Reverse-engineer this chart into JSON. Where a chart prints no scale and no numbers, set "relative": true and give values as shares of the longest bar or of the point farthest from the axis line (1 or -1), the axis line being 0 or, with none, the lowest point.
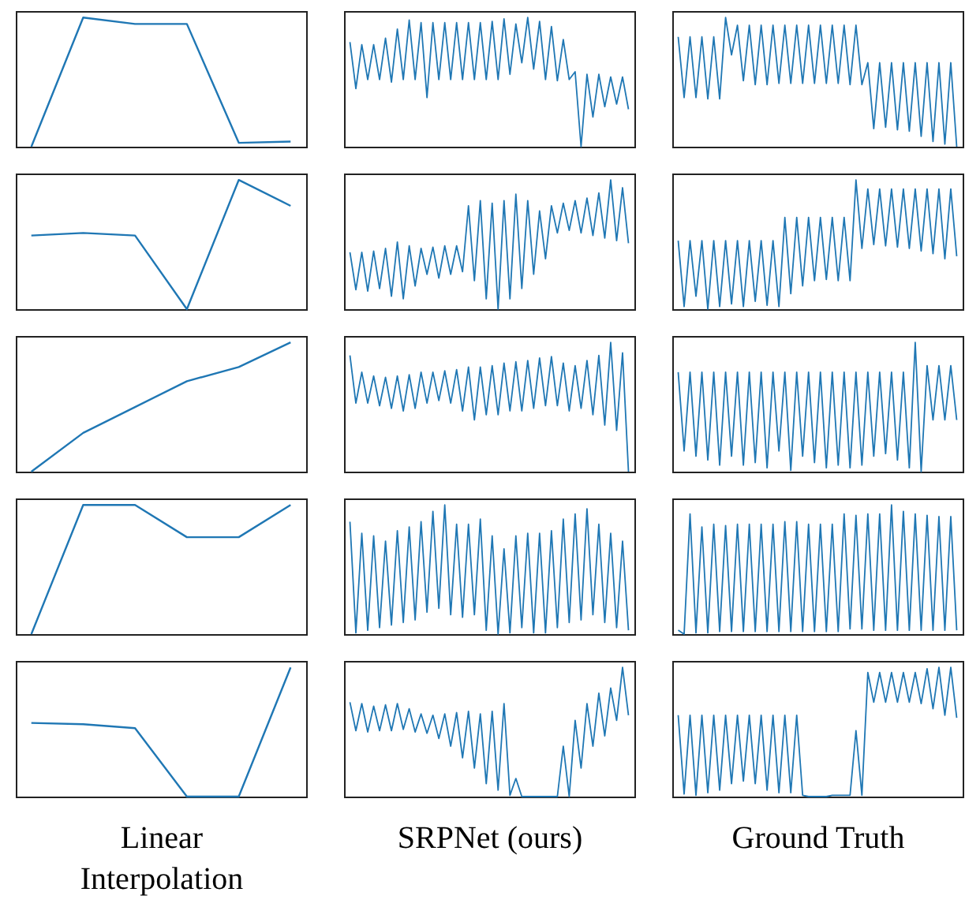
{
  "chart_data": [
    {
      "type": "line",
      "relative": true,
      "tick_labels": false,
      "categories": [
        null,
        null,
        null,
        null,
        null,
        null
      ],
      "series": [
        {
          "color": "#1f77b4",
          "values": [
            0,
            1,
            0.95,
            0.95,
            0.03,
            0.04
          ]
        }
      ]
    },
    {
      "type": "line",
      "relative": true,
      "tick_labels": false,
      "categories": [
        null,
        null,
        null,
        null,
        null,
        null,
        null,
        null,
        null,
        null,
        null,
        null,
        null,
        null,
        null,
        null,
        null,
        null,
        null,
        null,
        null,
        null,
        null,
        null,
        null,
        null,
        null,
        null,
        null,
        null,
        null,
        null,
        null,
        null,
        null,
        null,
        null,
        null,
        null,
        null,
        null,
        null,
        null,
        null,
        null,
        null,
        null,
        null
      ],
      "series": [
        {
          "color": "#1f77b4",
          "values": [
            0.81,
            0.45,
            0.79,
            0.52,
            0.79,
            0.52,
            0.84,
            0.5,
            0.91,
            0.52,
            0.98,
            0.52,
            0.96,
            0.38,
            0.96,
            0.52,
            0.96,
            0.52,
            0.96,
            0.52,
            0.96,
            0.52,
            0.96,
            0.52,
            0.97,
            0.52,
            0.99,
            0.56,
            0.95,
            0.65,
            1,
            0.6,
            0.97,
            0.52,
            0.93,
            0.51,
            0.83,
            0.52,
            0.58,
            0,
            0.56,
            0.23,
            0.56,
            0.31,
            0.54,
            0.33,
            0.54,
            0.29
          ]
        }
      ]
    },
    {
      "type": "line",
      "relative": true,
      "tick_labels": false,
      "categories": [
        null,
        null,
        null,
        null,
        null,
        null,
        null,
        null,
        null,
        null,
        null,
        null,
        null,
        null,
        null,
        null,
        null,
        null,
        null,
        null,
        null,
        null,
        null,
        null,
        null,
        null,
        null,
        null,
        null,
        null,
        null,
        null,
        null,
        null,
        null,
        null,
        null,
        null,
        null,
        null,
        null,
        null,
        null,
        null,
        null,
        null,
        null,
        null
      ],
      "series": [
        {
          "color": "#1f77b4",
          "values": [
            0.85,
            0.38,
            0.85,
            0.38,
            0.85,
            0.37,
            0.85,
            0.37,
            1,
            0.71,
            0.94,
            0.51,
            0.94,
            0.48,
            0.94,
            0.48,
            0.94,
            0.49,
            0.94,
            0.49,
            0.94,
            0.49,
            0.94,
            0.49,
            0.94,
            0.49,
            0.94,
            0.49,
            0.94,
            0.48,
            0.94,
            0.48,
            0.65,
            0.14,
            0.65,
            0.15,
            0.65,
            0.13,
            0.65,
            0.12,
            0.65,
            0.08,
            0.65,
            0.04,
            0.65,
            0.02,
            0.65,
            0
          ]
        }
      ]
    },
    {
      "type": "line",
      "relative": true,
      "tick_labels": false,
      "categories": [
        null,
        null,
        null,
        null,
        null,
        null
      ],
      "series": [
        {
          "color": "#1f77b4",
          "values": [
            0.57,
            0.59,
            0.57,
            0,
            1,
            0.8
          ]
        }
      ]
    },
    {
      "type": "line",
      "relative": true,
      "tick_labels": false,
      "categories": [
        null,
        null,
        null,
        null,
        null,
        null,
        null,
        null,
        null,
        null,
        null,
        null,
        null,
        null,
        null,
        null,
        null,
        null,
        null,
        null,
        null,
        null,
        null,
        null,
        null,
        null,
        null,
        null,
        null,
        null,
        null,
        null,
        null,
        null,
        null,
        null,
        null,
        null,
        null,
        null,
        null,
        null,
        null,
        null,
        null,
        null,
        null,
        null
      ],
      "series": [
        {
          "color": "#1f77b4",
          "values": [
            0.44,
            0.15,
            0.44,
            0.14,
            0.45,
            0.16,
            0.47,
            0.1,
            0.52,
            0.08,
            0.49,
            0.18,
            0.47,
            0.27,
            0.48,
            0.24,
            0.49,
            0.27,
            0.49,
            0.29,
            0.8,
            0.22,
            0.84,
            0.08,
            0.82,
            0,
            0.84,
            0.08,
            0.89,
            0.16,
            0.84,
            0.27,
            0.76,
            0.39,
            0.8,
            0.59,
            0.82,
            0.61,
            0.84,
            0.59,
            0.86,
            0.57,
            0.9,
            0.55,
            1,
            0.53,
            0.94,
            0.51
          ]
        }
      ]
    },
    {
      "type": "line",
      "relative": true,
      "tick_labels": false,
      "categories": [
        null,
        null,
        null,
        null,
        null,
        null,
        null,
        null,
        null,
        null,
        null,
        null,
        null,
        null,
        null,
        null,
        null,
        null,
        null,
        null,
        null,
        null,
        null,
        null,
        null,
        null,
        null,
        null,
        null,
        null,
        null,
        null,
        null,
        null,
        null,
        null,
        null,
        null,
        null,
        null,
        null,
        null,
        null,
        null,
        null,
        null,
        null,
        null
      ],
      "series": [
        {
          "color": "#1f77b4",
          "values": [
            0.53,
            0.02,
            0.53,
            0.1,
            0.53,
            0,
            0.53,
            0.02,
            0.53,
            0.04,
            0.53,
            0.02,
            0.53,
            0.06,
            0.53,
            0.03,
            0.53,
            0.02,
            0.71,
            0.12,
            0.71,
            0.18,
            0.71,
            0.22,
            0.71,
            0.23,
            0.71,
            0.22,
            0.71,
            0.22,
            1,
            0.47,
            0.93,
            0.5,
            0.93,
            0.49,
            0.93,
            0.48,
            0.93,
            0.47,
            0.93,
            0.45,
            0.93,
            0.43,
            0.93,
            0.39,
            0.93,
            0.41
          ]
        }
      ]
    },
    {
      "type": "line",
      "relative": true,
      "tick_labels": false,
      "categories": [
        null,
        null,
        null,
        null,
        null,
        null
      ],
      "series": [
        {
          "color": "#1f77b4",
          "values": [
            0,
            0.3,
            0.5,
            0.7,
            0.81,
            1
          ]
        }
      ]
    },
    {
      "type": "line",
      "relative": true,
      "tick_labels": false,
      "categories": [
        null,
        null,
        null,
        null,
        null,
        null,
        null,
        null,
        null,
        null,
        null,
        null,
        null,
        null,
        null,
        null,
        null,
        null,
        null,
        null,
        null,
        null,
        null,
        null,
        null,
        null,
        null,
        null,
        null,
        null,
        null,
        null,
        null,
        null,
        null,
        null,
        null,
        null,
        null,
        null,
        null,
        null,
        null,
        null,
        null,
        null,
        null,
        null
      ],
      "series": [
        {
          "color": "#1f77b4",
          "values": [
            0.9,
            0.53,
            0.77,
            0.53,
            0.74,
            0.51,
            0.73,
            0.49,
            0.74,
            0.47,
            0.75,
            0.49,
            0.77,
            0.53,
            0.77,
            0.55,
            0.78,
            0.53,
            0.79,
            0.47,
            0.81,
            0.4,
            0.81,
            0.44,
            0.82,
            0.44,
            0.84,
            0.47,
            0.85,
            0.47,
            0.86,
            0.49,
            0.88,
            0.51,
            0.89,
            0.51,
            0.84,
            0.47,
            0.82,
            0.49,
            0.86,
            0.44,
            0.9,
            0.36,
            1,
            0.32,
            0.92,
            0
          ]
        }
      ]
    },
    {
      "type": "line",
      "relative": true,
      "tick_labels": false,
      "categories": [
        null,
        null,
        null,
        null,
        null,
        null,
        null,
        null,
        null,
        null,
        null,
        null,
        null,
        null,
        null,
        null,
        null,
        null,
        null,
        null,
        null,
        null,
        null,
        null,
        null,
        null,
        null,
        null,
        null,
        null,
        null,
        null,
        null,
        null,
        null,
        null,
        null,
        null,
        null,
        null,
        null,
        null,
        null,
        null,
        null,
        null,
        null,
        null
      ],
      "series": [
        {
          "color": "#1f77b4",
          "values": [
            0.77,
            0.16,
            0.77,
            0.12,
            0.77,
            0.09,
            0.77,
            0.05,
            0.77,
            0.12,
            0.77,
            0.05,
            0.77,
            0.07,
            0.77,
            0.03,
            0.77,
            0.16,
            0.77,
            0.01,
            0.77,
            0.12,
            0.77,
            0.07,
            0.77,
            0.03,
            0.77,
            0.05,
            0.77,
            0.03,
            0.77,
            0.05,
            0.77,
            0.12,
            0.77,
            0.14,
            0.77,
            0.09,
            0.77,
            0.03,
            1,
            0,
            0.82,
            0.4,
            0.82,
            0.4,
            0.82,
            0.4
          ]
        }
      ]
    },
    {
      "type": "line",
      "relative": true,
      "tick_labels": false,
      "categories": [
        null,
        null,
        null,
        null,
        null,
        null
      ],
      "series": [
        {
          "color": "#1f77b4",
          "values": [
            0,
            1,
            1,
            0.75,
            0.75,
            1
          ]
        }
      ]
    },
    {
      "type": "line",
      "relative": true,
      "tick_labels": false,
      "categories": [
        null,
        null,
        null,
        null,
        null,
        null,
        null,
        null,
        null,
        null,
        null,
        null,
        null,
        null,
        null,
        null,
        null,
        null,
        null,
        null,
        null,
        null,
        null,
        null,
        null,
        null,
        null,
        null,
        null,
        null,
        null,
        null,
        null,
        null,
        null,
        null,
        null,
        null,
        null,
        null,
        null,
        null,
        null,
        null,
        null,
        null,
        null,
        null
      ],
      "series": [
        {
          "color": "#1f77b4",
          "values": [
            0.87,
            0.01,
            0.78,
            0.03,
            0.76,
            0.05,
            0.72,
            0.07,
            0.8,
            0.09,
            0.83,
            0.11,
            0.87,
            0.17,
            0.95,
            0.2,
            1,
            0.15,
            0.85,
            0.13,
            0.85,
            0.15,
            0.89,
            0.03,
            0.76,
            0,
            0.66,
            0.01,
            0.76,
            0.05,
            0.78,
            0.01,
            0.78,
            0.01,
            0.8,
            0.05,
            0.89,
            0.09,
            0.93,
            0.11,
            0.97,
            0.15,
            0.85,
            0.09,
            0.78,
            0.05,
            0.72,
            0.03
          ]
        }
      ]
    },
    {
      "type": "line",
      "relative": true,
      "tick_labels": false,
      "categories": [
        null,
        null,
        null,
        null,
        null,
        null,
        null,
        null,
        null,
        null,
        null,
        null,
        null,
        null,
        null,
        null,
        null,
        null,
        null,
        null,
        null,
        null,
        null,
        null,
        null,
        null,
        null,
        null,
        null,
        null,
        null,
        null,
        null,
        null,
        null,
        null,
        null,
        null,
        null,
        null,
        null,
        null,
        null,
        null,
        null,
        null,
        null,
        null
      ],
      "series": [
        {
          "color": "#1f77b4",
          "values": [
            0.03,
            0,
            0.93,
            0.01,
            0.83,
            0.01,
            0.85,
            0.02,
            0.84,
            0.02,
            0.85,
            0.02,
            0.85,
            0.02,
            0.85,
            0.02,
            0.85,
            0.02,
            0.87,
            0.02,
            0.87,
            0.02,
            0.85,
            0.02,
            0.85,
            0.02,
            0.85,
            0.02,
            0.93,
            0.04,
            0.92,
            0.04,
            0.93,
            0.03,
            0.93,
            0.03,
            1,
            0.03,
            0.95,
            0.03,
            0.93,
            0.03,
            0.92,
            0.03,
            0.91,
            0.03,
            0.91,
            0.03
          ]
        }
      ]
    },
    {
      "type": "line",
      "relative": true,
      "tick_labels": false,
      "xlabel": "Linear\nInterpolation",
      "categories": [
        null,
        null,
        null,
        null,
        null,
        null
      ],
      "series": [
        {
          "color": "#1f77b4",
          "values": [
            0.57,
            0.56,
            0.53,
            0,
            0,
            1
          ]
        }
      ]
    },
    {
      "type": "line",
      "relative": true,
      "tick_labels": false,
      "xlabel": "SRPNet (ours)",
      "categories": [
        null,
        null,
        null,
        null,
        null,
        null,
        null,
        null,
        null,
        null,
        null,
        null,
        null,
        null,
        null,
        null,
        null,
        null,
        null,
        null,
        null,
        null,
        null,
        null,
        null,
        null,
        null,
        null,
        null,
        null,
        null,
        null,
        null,
        null,
        null,
        null,
        null,
        null,
        null,
        null,
        null,
        null,
        null,
        null,
        null,
        null,
        null,
        null
      ],
      "series": [
        {
          "color": "#1f77b4",
          "values": [
            0.73,
            0.51,
            0.72,
            0.5,
            0.7,
            0.51,
            0.71,
            0.51,
            0.72,
            0.52,
            0.68,
            0.5,
            0.64,
            0.49,
            0.63,
            0.45,
            0.64,
            0.39,
            0.65,
            0.3,
            0.66,
            0.22,
            0.64,
            0.1,
            0.66,
            0.05,
            0.72,
            0.01,
            0.14,
            0,
            0,
            0,
            0,
            0,
            0,
            0,
            0.39,
            0,
            0.59,
            0.22,
            0.72,
            0.39,
            0.8,
            0.47,
            0.84,
            0.59,
            1,
            0.63
          ]
        }
      ]
    },
    {
      "type": "line",
      "relative": true,
      "tick_labels": false,
      "xlabel": "Ground Truth",
      "categories": [
        null,
        null,
        null,
        null,
        null,
        null,
        null,
        null,
        null,
        null,
        null,
        null,
        null,
        null,
        null,
        null,
        null,
        null,
        null,
        null,
        null,
        null,
        null,
        null,
        null,
        null,
        null,
        null,
        null,
        null,
        null,
        null,
        null,
        null,
        null,
        null,
        null,
        null,
        null,
        null,
        null,
        null,
        null,
        null,
        null,
        null,
        null,
        null
      ],
      "series": [
        {
          "color": "#1f77b4",
          "values": [
            0.63,
            0.02,
            0.63,
            0.01,
            0.63,
            0.03,
            0.63,
            0.05,
            0.63,
            0.1,
            0.63,
            0.12,
            0.63,
            0.1,
            0.63,
            0.05,
            0.63,
            0.03,
            0.63,
            0.03,
            0.63,
            0.01,
            0,
            0,
            0,
            0,
            0.01,
            0.01,
            0.01,
            0.01,
            0.51,
            0.01,
            0.96,
            0.73,
            0.96,
            0.73,
            0.96,
            0.73,
            0.96,
            0.73,
            0.96,
            0.72,
            0.99,
            0.68,
            1,
            0.63,
            1,
            0.61
          ]
        }
      ]
    }
  ]
}
